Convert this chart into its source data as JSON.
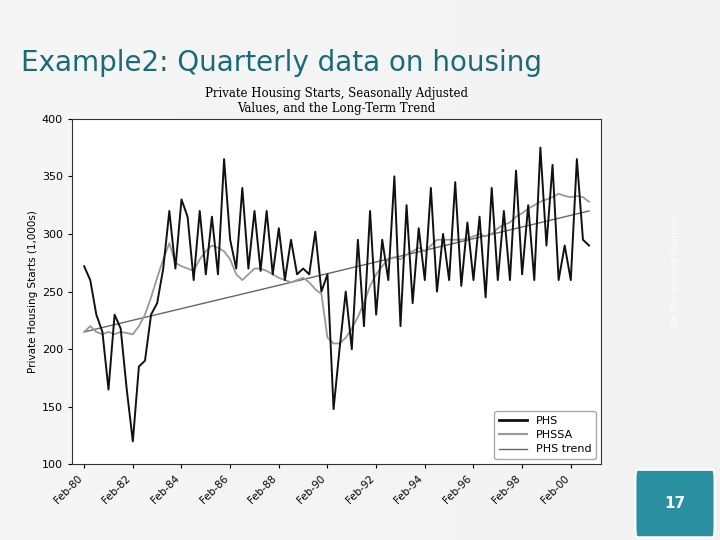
{
  "title": "Example2: Quarterly data on housing",
  "title_color": "#1a6b7a",
  "title_fontsize": 20,
  "chart_title": "Private Housing Starts, Seasonally Adjusted\nValues, and the Long-Term Trend",
  "ylabel": "Private Housing Starts (1,000s)",
  "background_slide": "#f0f0f0",
  "background_chart": "#ffffff",
  "sidebar_color": "#1a6b7a",
  "page_number": "17",
  "ylim": [
    100,
    400
  ],
  "yticks": [
    100,
    150,
    200,
    250,
    300,
    350,
    400
  ],
  "xtick_labels": [
    "Feb-80",
    "Feb-82",
    "Feb-84",
    "Feb-86",
    "Feb-88",
    "Feb-90",
    "Feb-92",
    "Feb-94",
    "Feb-96",
    "Feb-98",
    "Feb-00"
  ],
  "author_text": "Dr. Mohammed Alahmed",
  "phs_color": "#111111",
  "phssa_color": "#999999",
  "trend_color": "#666666",
  "phs_lw": 1.4,
  "phssa_lw": 1.3,
  "trend_lw": 1.0
}
